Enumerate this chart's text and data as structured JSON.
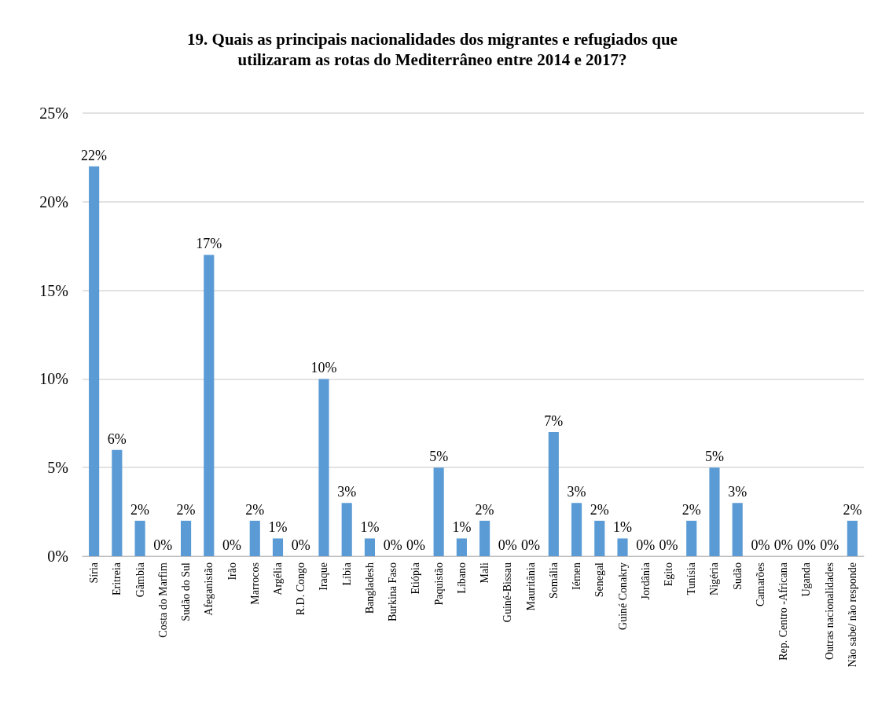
{
  "chart_data": {
    "type": "bar",
    "title": "19. Quais as principais nacionalidades dos migrantes e refugiados que\nutilizaram as rotas do Mediterrâneo entre 2014 e 2017?",
    "categories": [
      "Síria",
      "Eritreia",
      "Gâmbia",
      "Costa do Marfim",
      "Sudão do Sul",
      "Afeganistão",
      "Irão",
      "Marrocos",
      "Argélia",
      "R.D. Congo",
      "Iraque",
      "Líbia",
      "Bangladesh",
      "Burkina Faso",
      "Etiópia",
      "Paquistão",
      "Líbano",
      "Mali",
      "Guiné-Bissau",
      "Mauritânia",
      "Somália",
      "Iémen",
      "Senegal",
      "Guiné Conakry",
      "Jordânia",
      "Egito",
      "Tunísia",
      "Nigéria",
      "Sudão",
      "Camarões",
      "Rep. Centro -Africana",
      "Uganda",
      "Outras nacionalidades",
      "Não sabe/ não responde"
    ],
    "values": [
      22,
      6,
      2,
      0,
      2,
      17,
      0,
      2,
      1,
      0,
      10,
      3,
      1,
      0,
      0,
      5,
      1,
      2,
      0,
      0,
      7,
      3,
      2,
      1,
      0,
      0,
      2,
      5,
      3,
      0,
      0,
      0,
      0,
      2
    ],
    "value_labels": [
      "22%",
      "6%",
      "2%",
      "0%",
      "2%",
      "17%",
      "0%",
      "2%",
      "1%",
      "0%",
      "10%",
      "3%",
      "1%",
      "0%",
      "0%",
      "5%",
      "1%",
      "2%",
      "0%",
      "0%",
      "7%",
      "3%",
      "2%",
      "1%",
      "0%",
      "0%",
      "2%",
      "5%",
      "3%",
      "0%",
      "0%",
      "0%",
      "0%",
      "2%"
    ],
    "color": "#5b9bd5",
    "ylim": [
      0,
      25
    ],
    "yticks": [
      {
        "value": 0,
        "label": "0%"
      },
      {
        "value": 5,
        "label": "5%"
      },
      {
        "value": 10,
        "label": "10%"
      },
      {
        "value": 15,
        "label": "15%"
      },
      {
        "value": 20,
        "label": "20%"
      },
      {
        "value": 25,
        "label": "25%"
      }
    ],
    "grid": "y"
  }
}
